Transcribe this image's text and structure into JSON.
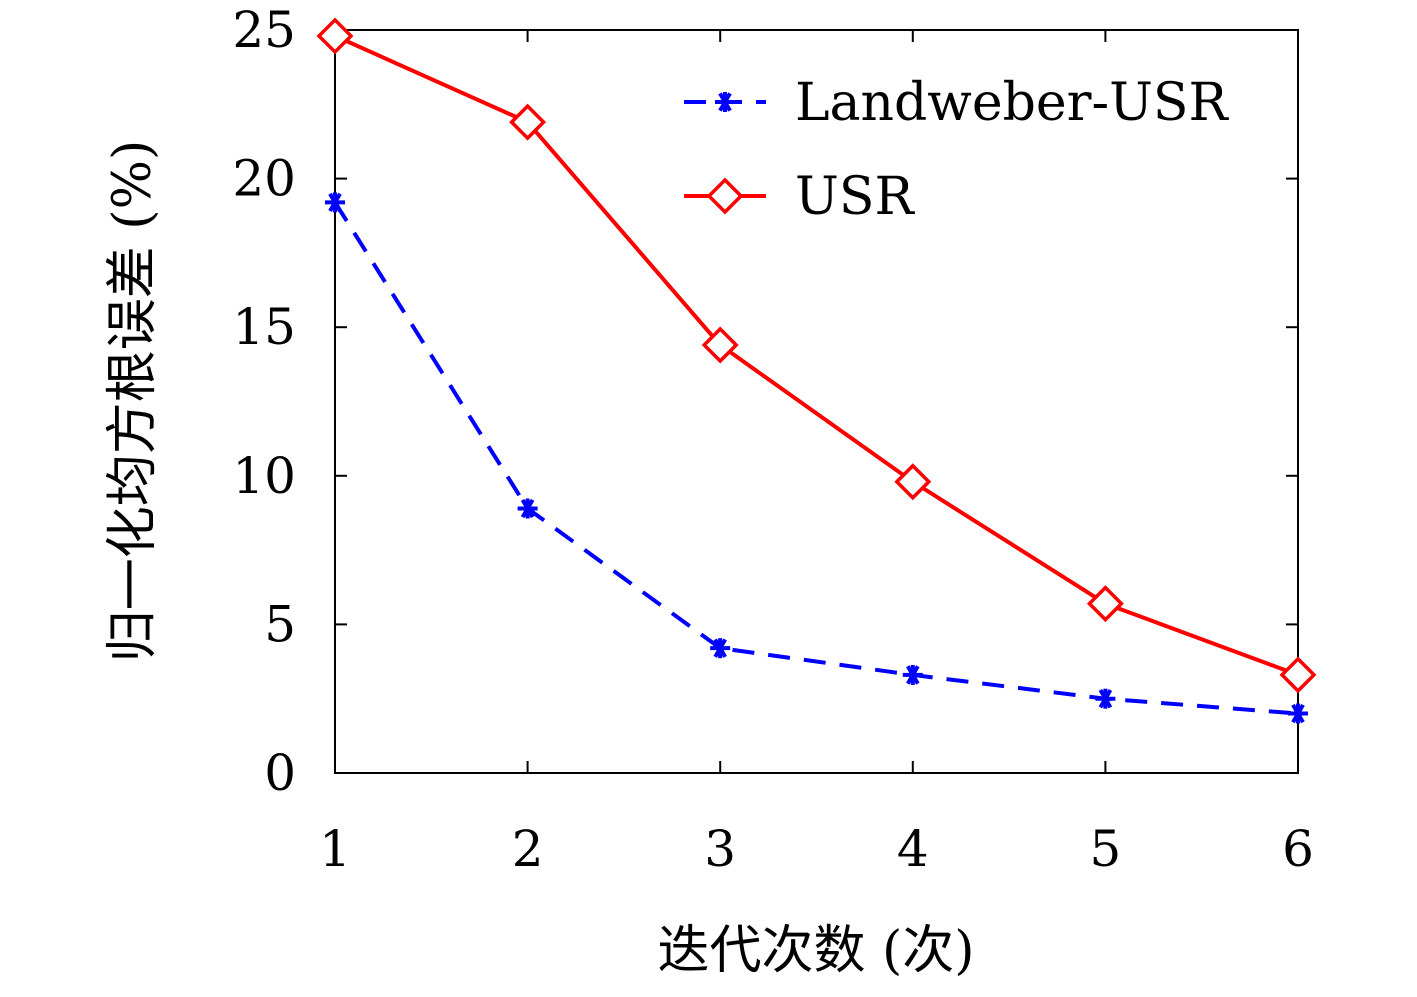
{
  "chart_data": {
    "type": "line",
    "title": "",
    "xlabel": "迭代次数 (次)",
    "ylabel": "归一化均方根误差 (%)",
    "x": [
      1,
      2,
      3,
      4,
      5,
      6
    ],
    "xlim": [
      1,
      6
    ],
    "ylim": [
      0,
      25
    ],
    "xticks": [
      "1",
      "2",
      "3",
      "4",
      "5",
      "6"
    ],
    "yticks": [
      "0",
      "5",
      "10",
      "15",
      "20",
      "25"
    ],
    "grid": false,
    "legend_position": "top-right",
    "series": [
      {
        "name": "Landweber-USR",
        "values": [
          19.2,
          8.9,
          4.2,
          3.3,
          2.5,
          2.0
        ],
        "color": "#0000ff",
        "line": "dashed",
        "marker": "asterisk"
      },
      {
        "name": "USR",
        "values": [
          24.8,
          21.9,
          14.4,
          9.8,
          5.7,
          3.3
        ],
        "color": "#ff0000",
        "line": "solid",
        "marker": "diamond"
      }
    ]
  }
}
